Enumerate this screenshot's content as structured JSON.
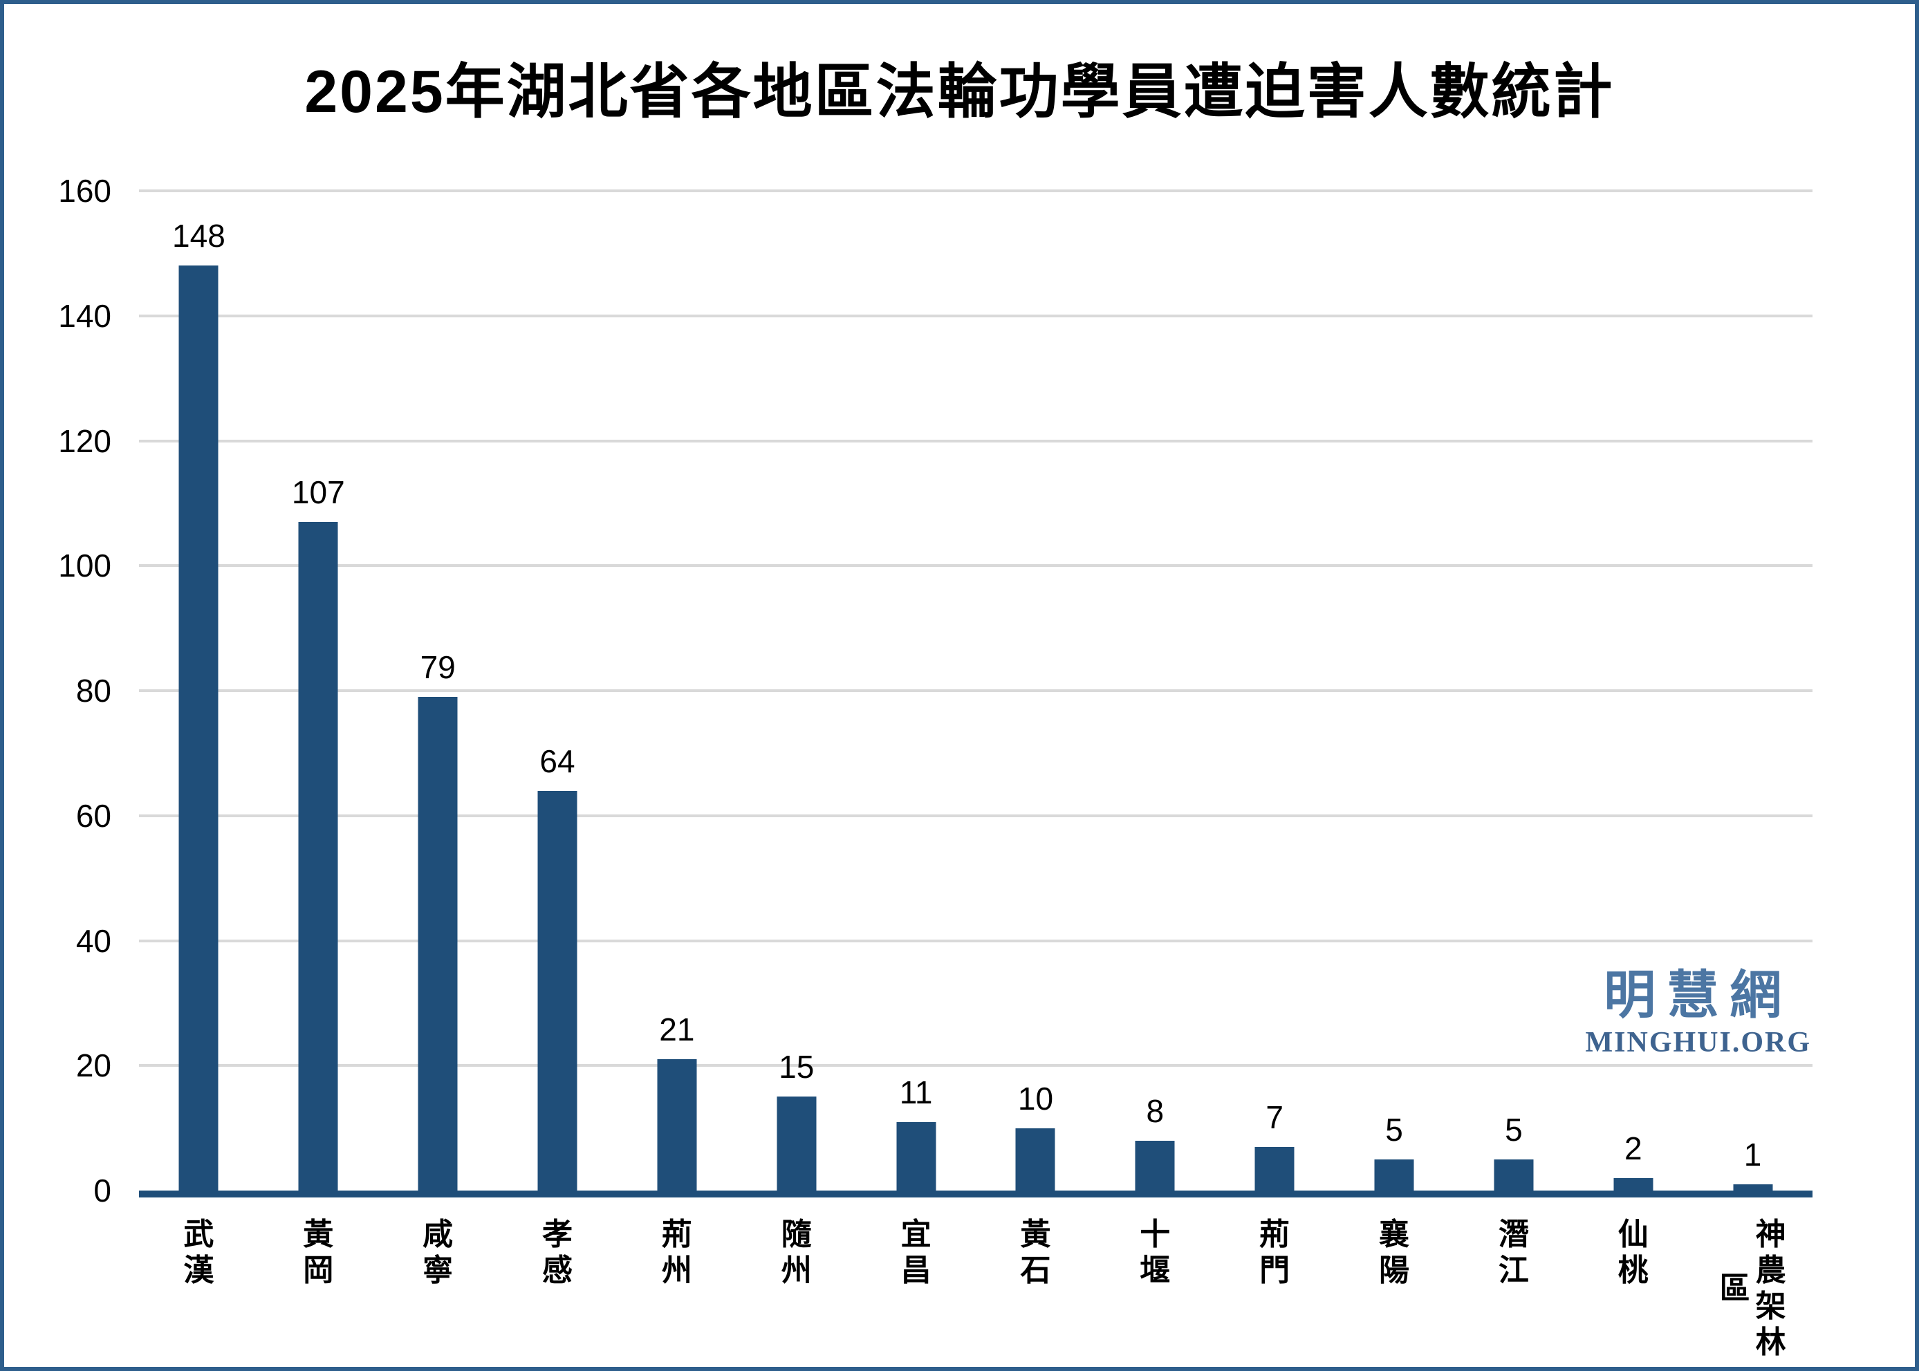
{
  "title": "2025年湖北省各地區法輪功學員遭迫害人數統計",
  "watermark": {
    "cjk": "明慧網",
    "latin": "MINGHUI.ORG"
  },
  "colors": {
    "bar": "#1f4e79",
    "axis_line": "#1f4e79",
    "gridline": "#d9d9d9",
    "frame_border": "#2e5e8c",
    "watermark_cjk": "#4c76a3",
    "watermark_latin": "#3e638f",
    "text": "#000000",
    "background": "#ffffff"
  },
  "chart_data": {
    "type": "bar",
    "title": "2025年湖北省各地區法輪功學員遭迫害人數統計",
    "categories": [
      "武漢",
      "黃岡",
      "咸寧",
      "孝感",
      "荊州",
      "隨州",
      "宜昌",
      "黃石",
      "十堰",
      "荊門",
      "襄陽",
      "潛江",
      "仙桃",
      "神農架林區"
    ],
    "values": [
      148,
      107,
      79,
      64,
      21,
      15,
      11,
      10,
      8,
      7,
      5,
      5,
      2,
      1
    ],
    "xlabel": "",
    "ylabel": "",
    "ylim": [
      0,
      160
    ],
    "yticks": [
      0,
      20,
      40,
      60,
      80,
      100,
      120,
      140,
      160
    ],
    "grid": "horizontal",
    "bar_value_labels_shown": true,
    "legend_position": "none",
    "category_text_orientation": "vertical"
  }
}
